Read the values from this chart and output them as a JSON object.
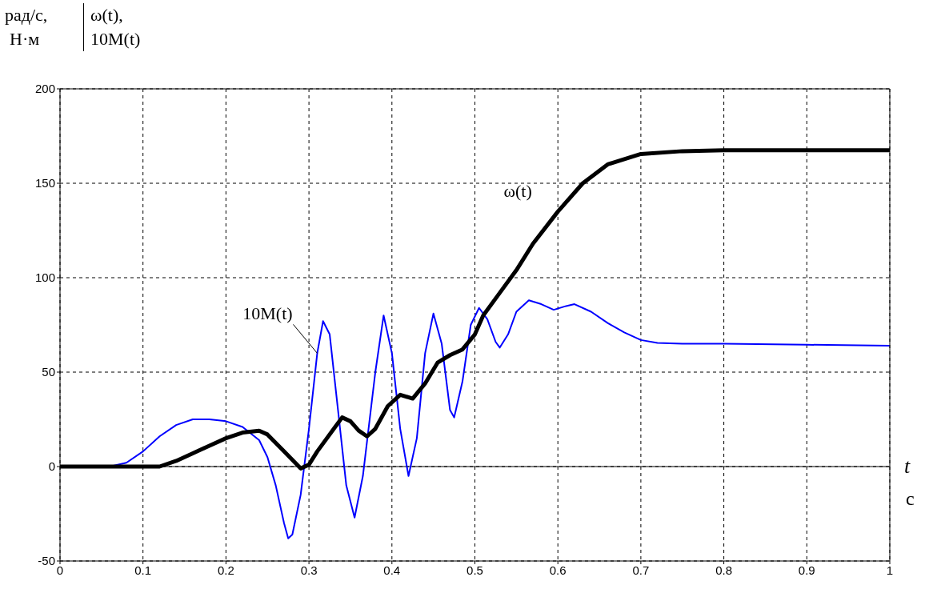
{
  "chart_data": {
    "type": "line",
    "ylabel": "ω(t), 10M(t)",
    "xlabel": "t",
    "annotations": [
      "рад/с, Н·м",
      "с"
    ],
    "xlim": [
      0,
      1
    ],
    "xticks": [
      0,
      0.1,
      0.2,
      0.3,
      0.4,
      0.5,
      0.6,
      0.7,
      0.8,
      0.9,
      1
    ],
    "ylim": [
      -50,
      200
    ],
    "yticks": [
      -50,
      0,
      50,
      100,
      150,
      200
    ],
    "grid": true,
    "marker": "none",
    "line_style": "solid",
    "ref_lines": [
      {
        "axis": "y",
        "value": 0,
        "color": "#000000",
        "line_style": "solid"
      }
    ],
    "series": [
      {
        "name": "10M(t)",
        "color": "#0000ff",
        "x": [
          0,
          0.06,
          0.08,
          0.1,
          0.12,
          0.14,
          0.16,
          0.18,
          0.2,
          0.22,
          0.24,
          0.25,
          0.26,
          0.27,
          0.275,
          0.28,
          0.29,
          0.3,
          0.31,
          0.317,
          0.325,
          0.335,
          0.345,
          0.355,
          0.365,
          0.38,
          0.39,
          0.4,
          0.41,
          0.42,
          0.43,
          0.44,
          0.45,
          0.46,
          0.47,
          0.475,
          0.485,
          0.495,
          0.505,
          0.515,
          0.525,
          0.53,
          0.54,
          0.55,
          0.565,
          0.58,
          0.595,
          0.61,
          0.62,
          0.64,
          0.66,
          0.68,
          0.7,
          0.72,
          0.75,
          0.8,
          0.9,
          1
        ],
        "values": [
          0,
          0,
          2,
          8,
          16,
          22,
          25,
          25,
          24,
          21,
          14,
          5,
          -10,
          -30,
          -38,
          -36,
          -15,
          20,
          60,
          77,
          70,
          30,
          -10,
          -27,
          -5,
          50,
          80,
          60,
          20,
          -5,
          15,
          60,
          81,
          65,
          30,
          26,
          45,
          75,
          84,
          78,
          66,
          63,
          70,
          82,
          88,
          86,
          83,
          85,
          86,
          82,
          76,
          71,
          67,
          65.5,
          65,
          65,
          64.5,
          64
        ]
      },
      {
        "name": "ω(t)",
        "color": "#000000",
        "x": [
          0,
          0.12,
          0.14,
          0.16,
          0.18,
          0.2,
          0.22,
          0.24,
          0.25,
          0.27,
          0.29,
          0.3,
          0.31,
          0.33,
          0.34,
          0.35,
          0.36,
          0.37,
          0.38,
          0.395,
          0.41,
          0.425,
          0.44,
          0.455,
          0.47,
          0.485,
          0.5,
          0.51,
          0.53,
          0.55,
          0.57,
          0.6,
          0.63,
          0.66,
          0.7,
          0.75,
          0.8,
          1
        ],
        "values": [
          0,
          0,
          3,
          7,
          11,
          15,
          18,
          19,
          17,
          8,
          -1,
          1,
          8,
          20,
          26,
          24,
          19,
          16,
          20,
          32,
          38,
          36,
          44,
          55,
          59,
          62,
          70,
          80,
          92,
          104,
          118,
          135,
          150,
          160,
          165.5,
          167,
          167.5,
          167.5
        ]
      }
    ]
  }
}
